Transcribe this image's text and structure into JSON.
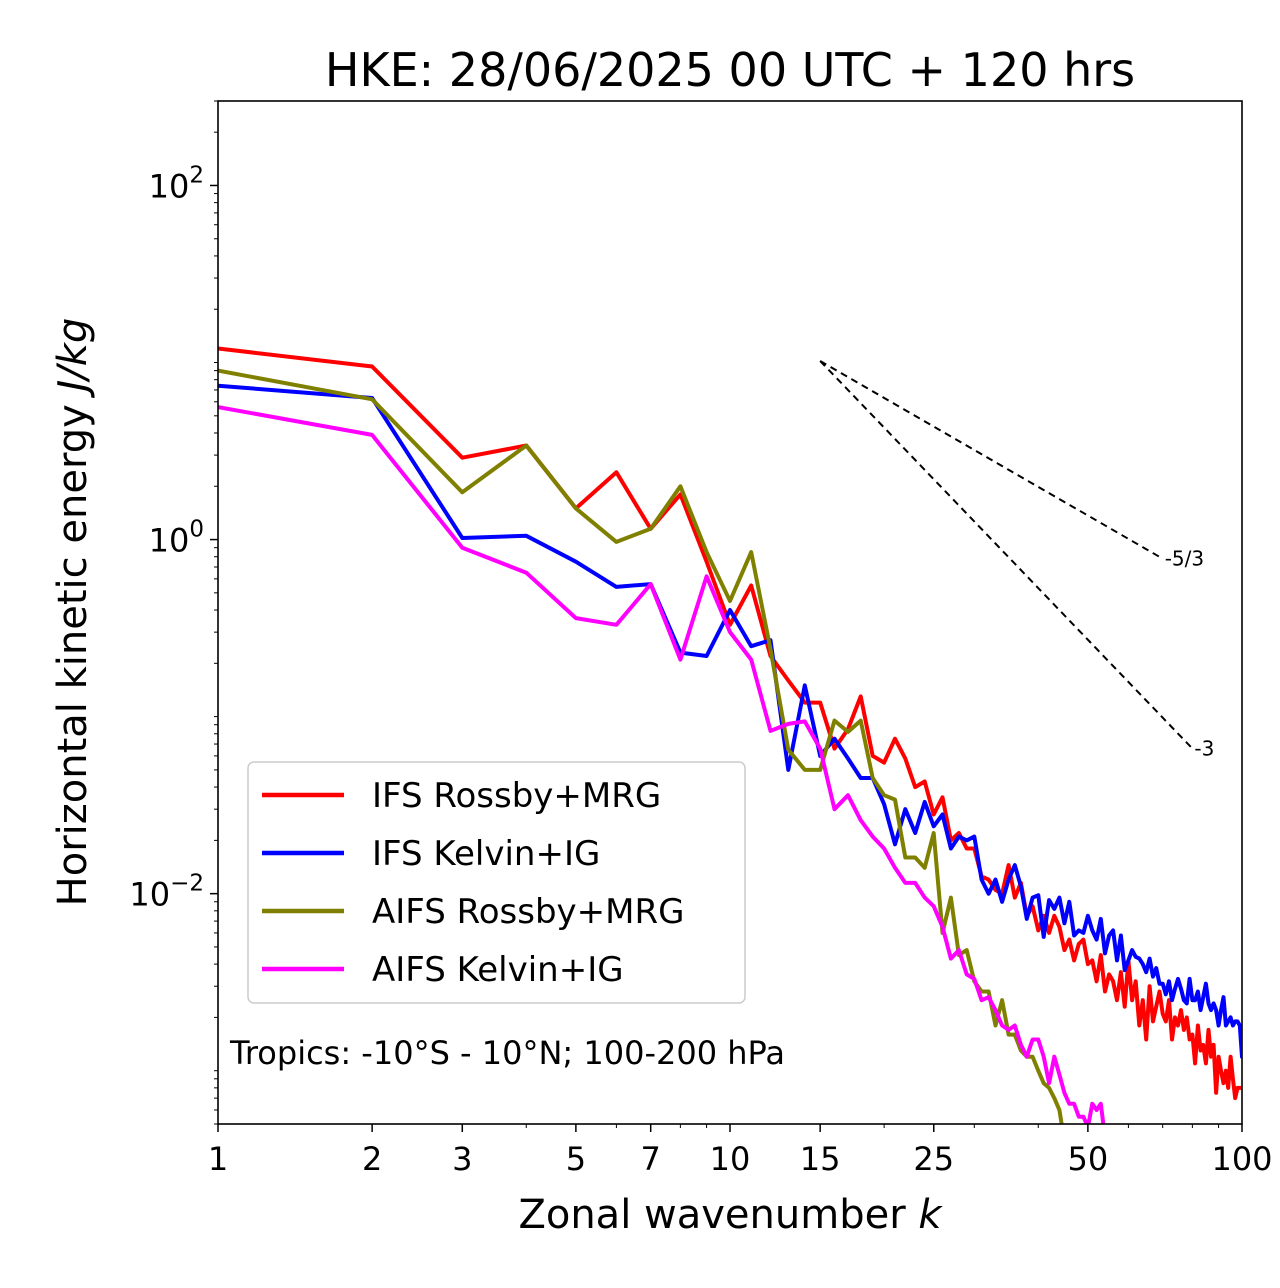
{
  "chart_data": {
    "type": "line",
    "title": "HKE: 28/06/2025 00 UTC + 120 hrs",
    "xlabel": "Zonal wavenumber",
    "xlabel_symbol": "k",
    "ylabel": "Horizontal kinetic energy",
    "ylabel_units": "J/kg",
    "xscale": "log",
    "yscale": "log",
    "xlim": [
      1,
      100
    ],
    "ylim": [
      0.0005,
      300
    ],
    "x_ticks": [
      {
        "value": 1,
        "label": "1"
      },
      {
        "value": 2,
        "label": "2"
      },
      {
        "value": 3,
        "label": "3"
      },
      {
        "value": 5,
        "label": "5"
      },
      {
        "value": 7,
        "label": "7"
      },
      {
        "value": 10,
        "label": "10"
      },
      {
        "value": 15,
        "label": "15"
      },
      {
        "value": 25,
        "label": "25"
      },
      {
        "value": 50,
        "label": "50"
      },
      {
        "value": 100,
        "label": "100"
      }
    ],
    "y_ticks": [
      {
        "value": 100,
        "base": "10",
        "exp": "2"
      },
      {
        "value": 1,
        "base": "10",
        "exp": "0"
      },
      {
        "value": 0.01,
        "base": "10",
        "exp": "−2"
      }
    ],
    "grid": false,
    "legend_position": "lower-left",
    "annotation": "Tropics: -10°S - 10°N; 100-200 hPa",
    "reference_slopes": [
      {
        "label": "-5/3",
        "x": [
          15,
          70
        ],
        "y": [
          10.2,
          0.78
        ]
      },
      {
        "label": "-3",
        "x": [
          15,
          80
        ],
        "y": [
          10.2,
          0.066
        ]
      }
    ],
    "series": [
      {
        "name": "IFS Rossby+MRG",
        "color": "#ff0000",
        "x": [
          1,
          2,
          3,
          4,
          5,
          6,
          7,
          8,
          9,
          10,
          11,
          12,
          13,
          14,
          15,
          16,
          17,
          18,
          19,
          20,
          21,
          22,
          23,
          24,
          25,
          26,
          27,
          28,
          29,
          30,
          31,
          32,
          33,
          34,
          35,
          36,
          37,
          38,
          39,
          40,
          41,
          42,
          43,
          44,
          45,
          46,
          47,
          48,
          49,
          50,
          51,
          52,
          53,
          54,
          55,
          56,
          57,
          58,
          59,
          60,
          61,
          62,
          63,
          64,
          65,
          66,
          67,
          68,
          69,
          70,
          71,
          72,
          73,
          74,
          75,
          76,
          77,
          78,
          79,
          80,
          81,
          82,
          83,
          84,
          85,
          86,
          87,
          88,
          89,
          90,
          91,
          92,
          93,
          94,
          95,
          96,
          97,
          98,
          99,
          100
        ],
        "y": [
          12,
          9.5,
          2.9,
          3.4,
          1.5,
          2.4,
          1.15,
          1.8,
          0.75,
          0.33,
          0.55,
          0.22,
          0.16,
          0.12,
          0.12,
          0.066,
          0.085,
          0.13,
          0.06,
          0.055,
          0.075,
          0.058,
          0.04,
          0.043,
          0.028,
          0.035,
          0.02,
          0.022,
          0.018,
          0.018,
          0.0125,
          0.012,
          0.0105,
          0.01,
          0.0145,
          0.0095,
          0.0115,
          0.0075,
          0.0085,
          0.0062,
          0.0075,
          0.006,
          0.0075,
          0.0065,
          0.0048,
          0.0055,
          0.0042,
          0.0052,
          0.0055,
          0.004,
          0.0042,
          0.0032,
          0.0045,
          0.0028,
          0.0035,
          0.0032,
          0.0025,
          0.0036,
          0.0023,
          0.0042,
          0.0025,
          0.0032,
          0.0018,
          0.0025,
          0.0015,
          0.003,
          0.0019,
          0.0023,
          0.0028,
          0.0021,
          0.0019,
          0.0025,
          0.0015,
          0.002,
          0.0018,
          0.0022,
          0.0017,
          0.002,
          0.0015,
          0.0016,
          0.0011,
          0.0018,
          0.0013,
          0.0014,
          0.0011,
          0.0017,
          0.0012,
          0.0014,
          0.00075,
          0.0012,
          0.001,
          0.00085,
          0.001,
          0.0008,
          0.0012,
          0.0009,
          0.0007,
          0.0008,
          0.0008,
          0.0008
        ]
      },
      {
        "name": "IFS Kelvin+IG",
        "color": "#0000ff",
        "x": [
          1,
          2,
          3,
          4,
          5,
          6,
          7,
          8,
          9,
          10,
          11,
          12,
          13,
          14,
          15,
          16,
          17,
          18,
          19,
          20,
          21,
          22,
          23,
          24,
          25,
          26,
          27,
          28,
          29,
          30,
          31,
          32,
          33,
          34,
          35,
          36,
          37,
          38,
          39,
          40,
          41,
          42,
          43,
          44,
          45,
          46,
          47,
          48,
          49,
          50,
          51,
          52,
          53,
          54,
          55,
          56,
          57,
          58,
          59,
          60,
          61,
          62,
          63,
          64,
          65,
          66,
          67,
          68,
          69,
          70,
          71,
          72,
          73,
          74,
          75,
          76,
          77,
          78,
          79,
          80,
          81,
          82,
          83,
          84,
          85,
          86,
          87,
          88,
          89,
          90,
          91,
          92,
          93,
          94,
          95,
          96,
          97,
          98,
          99,
          100
        ],
        "y": [
          7.4,
          6.3,
          1.02,
          1.05,
          0.75,
          0.54,
          0.56,
          0.23,
          0.22,
          0.4,
          0.25,
          0.27,
          0.05,
          0.15,
          0.06,
          0.075,
          0.058,
          0.045,
          0.045,
          0.032,
          0.019,
          0.03,
          0.022,
          0.033,
          0.024,
          0.028,
          0.018,
          0.021,
          0.02,
          0.021,
          0.012,
          0.01,
          0.012,
          0.009,
          0.012,
          0.0145,
          0.011,
          0.0072,
          0.0095,
          0.0098,
          0.0057,
          0.0092,
          0.0082,
          0.0095,
          0.0068,
          0.009,
          0.0058,
          0.0062,
          0.006,
          0.0075,
          0.0062,
          0.0055,
          0.0072,
          0.0046,
          0.0058,
          0.0062,
          0.0042,
          0.0058,
          0.0037,
          0.0042,
          0.0048,
          0.0044,
          0.0043,
          0.004,
          0.0036,
          0.0043,
          0.0034,
          0.0038,
          0.0031,
          0.0031,
          0.0027,
          0.0032,
          0.0025,
          0.0029,
          0.0033,
          0.0029,
          0.0025,
          0.0024,
          0.0033,
          0.0025,
          0.0025,
          0.0028,
          0.0022,
          0.0026,
          0.0031,
          0.0024,
          0.0022,
          0.0024,
          0.0022,
          0.0018,
          0.0022,
          0.0026,
          0.0018,
          0.0019,
          0.002,
          0.0018,
          0.0019,
          0.0019,
          0.0018,
          0.0012
        ]
      },
      {
        "name": "AIFS Rossby+MRG",
        "color": "#808000",
        "x": [
          1,
          2,
          3,
          4,
          5,
          6,
          7,
          8,
          9,
          10,
          11,
          12,
          13,
          14,
          15,
          16,
          17,
          18,
          19,
          20,
          21,
          22,
          23,
          24,
          25,
          26,
          27,
          28,
          29,
          30,
          31,
          32,
          33,
          34,
          35,
          36,
          37,
          38,
          39,
          40,
          41,
          42,
          43,
          44,
          45,
          46,
          47,
          48,
          49,
          50,
          51,
          52
        ],
        "y": [
          9,
          6.2,
          1.85,
          3.4,
          1.5,
          0.97,
          1.15,
          2.0,
          0.85,
          0.45,
          0.85,
          0.24,
          0.065,
          0.05,
          0.05,
          0.095,
          0.082,
          0.095,
          0.045,
          0.036,
          0.034,
          0.016,
          0.016,
          0.014,
          0.022,
          0.006,
          0.0095,
          0.0045,
          0.0048,
          0.0032,
          0.0028,
          0.0028,
          0.0018,
          0.0025,
          0.0016,
          0.0016,
          0.0013,
          0.0012,
          0.0012,
          0.001,
          0.00085,
          0.0008,
          0.0007,
          0.0006,
          0.0004,
          0.0004,
          0.0004,
          0.0004,
          0.0004,
          0.0004,
          0.0004,
          0.0004
        ]
      },
      {
        "name": "AIFS Kelvin+IG",
        "color": "#ff00ff",
        "x": [
          1,
          2,
          3,
          4,
          5,
          6,
          7,
          8,
          9,
          10,
          11,
          12,
          13,
          14,
          15,
          16,
          17,
          18,
          19,
          20,
          21,
          22,
          23,
          24,
          25,
          26,
          27,
          28,
          29,
          30,
          31,
          32,
          33,
          34,
          35,
          36,
          37,
          38,
          39,
          40,
          41,
          42,
          43,
          44,
          45,
          46,
          47,
          48,
          49,
          50,
          51,
          52,
          53,
          54,
          55
        ],
        "y": [
          5.6,
          3.9,
          0.9,
          0.65,
          0.36,
          0.33,
          0.56,
          0.21,
          0.62,
          0.3,
          0.21,
          0.083,
          0.091,
          0.094,
          0.066,
          0.03,
          0.036,
          0.026,
          0.021,
          0.018,
          0.014,
          0.0115,
          0.0115,
          0.0095,
          0.0085,
          0.0065,
          0.0043,
          0.0048,
          0.0035,
          0.0033,
          0.0025,
          0.0026,
          0.0022,
          0.0018,
          0.0017,
          0.0018,
          0.0014,
          0.0012,
          0.0015,
          0.0015,
          0.0012,
          0.00085,
          0.0012,
          0.00095,
          0.00075,
          0.00065,
          0.00065,
          0.00055,
          0.00055,
          0.00048,
          0.00065,
          0.0006,
          0.00065,
          0.00042,
          0.0004
        ]
      }
    ]
  }
}
